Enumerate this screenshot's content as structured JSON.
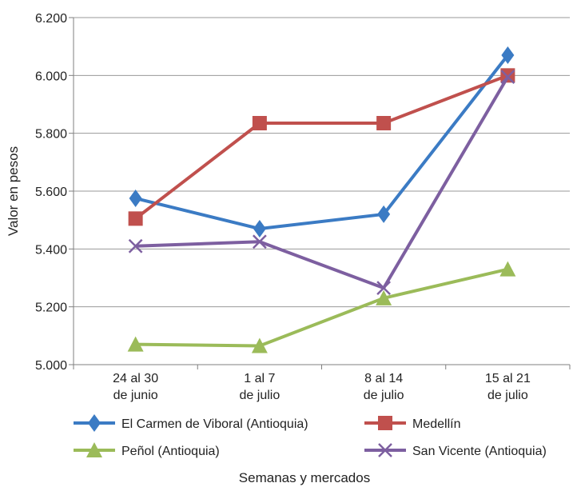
{
  "chart_data": {
    "type": "line",
    "title": "",
    "xlabel": "Semanas y mercados",
    "ylabel": "Valor en pesos",
    "ylim": [
      5000,
      6200
    ],
    "yticks": [
      5000,
      5200,
      5400,
      5600,
      5800,
      6000,
      6200
    ],
    "ytick_labels": [
      "5.000",
      "5.200",
      "5.400",
      "5.600",
      "5.800",
      "6.000",
      "6.200"
    ],
    "categories": [
      [
        "24 al 30",
        "de junio"
      ],
      [
        "1 al 7",
        "de julio"
      ],
      [
        "8 al 14",
        "de julio"
      ],
      [
        "15 al 21",
        "de julio"
      ]
    ],
    "grid": true,
    "legend_position": "bottom",
    "series": [
      {
        "name": "El Carmen de Viboral (Antioquia)",
        "color": "#3b7bc4",
        "marker": "diamond",
        "values": [
          5575,
          5470,
          5520,
          6070
        ]
      },
      {
        "name": "Medellín",
        "color": "#c0504d",
        "marker": "square",
        "values": [
          5505,
          5835,
          5835,
          6000
        ]
      },
      {
        "name": "Peñol (Antioquia)",
        "color": "#9bbb59",
        "marker": "triangle",
        "values": [
          5070,
          5065,
          5230,
          5330
        ]
      },
      {
        "name": "San Vicente (Antioquia)",
        "color": "#7d5fa0",
        "marker": "x",
        "values": [
          5410,
          5425,
          5265,
          5995
        ]
      }
    ]
  }
}
